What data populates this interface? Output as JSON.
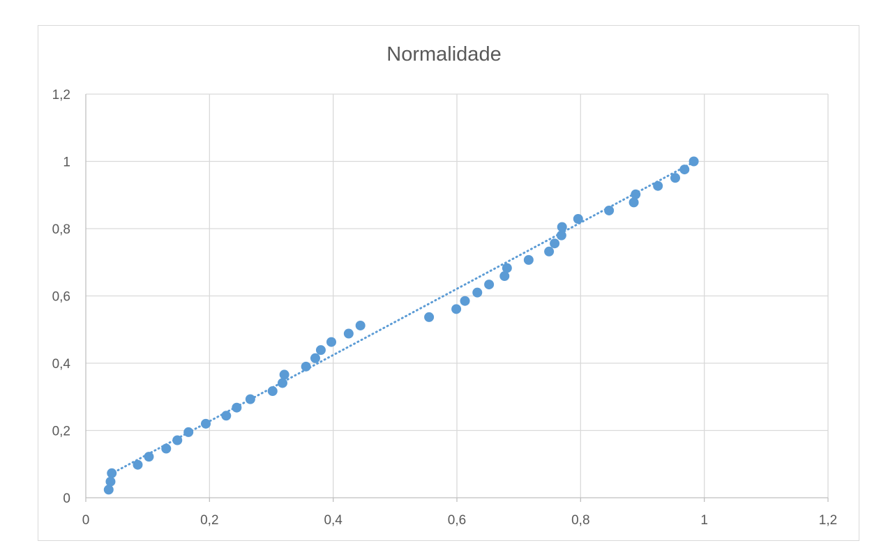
{
  "chart_data": {
    "type": "scatter",
    "title": "Normalidade",
    "xlabel": "",
    "ylabel": "",
    "xlim": [
      0,
      1.2
    ],
    "ylim": [
      0,
      1.2
    ],
    "x_ticks": [
      "0",
      "0,2",
      "0,4",
      "0,6",
      "0,8",
      "1",
      "1,2"
    ],
    "y_ticks": [
      "0",
      "0,2",
      "0,4",
      "0,6",
      "0,8",
      "1",
      "1,2"
    ],
    "grid": true,
    "legend": "none",
    "trendline": {
      "style": "dotted",
      "type": "linear",
      "from": [
        0.04,
        0.07
      ],
      "to": [
        0.985,
        1.0
      ]
    },
    "color": "#5b9bd5",
    "points": [
      [
        0.037,
        0.024
      ],
      [
        0.04,
        0.048
      ],
      [
        0.042,
        0.073
      ],
      [
        0.084,
        0.098
      ],
      [
        0.102,
        0.122
      ],
      [
        0.13,
        0.146
      ],
      [
        0.148,
        0.171
      ],
      [
        0.166,
        0.195
      ],
      [
        0.194,
        0.22
      ],
      [
        0.227,
        0.244
      ],
      [
        0.244,
        0.268
      ],
      [
        0.266,
        0.293
      ],
      [
        0.302,
        0.317
      ],
      [
        0.318,
        0.341
      ],
      [
        0.321,
        0.366
      ],
      [
        0.356,
        0.39
      ],
      [
        0.371,
        0.415
      ],
      [
        0.38,
        0.439
      ],
      [
        0.397,
        0.463
      ],
      [
        0.425,
        0.488
      ],
      [
        0.444,
        0.512
      ],
      [
        0.555,
        0.537
      ],
      [
        0.599,
        0.561
      ],
      [
        0.613,
        0.585
      ],
      [
        0.633,
        0.61
      ],
      [
        0.652,
        0.634
      ],
      [
        0.677,
        0.659
      ],
      [
        0.681,
        0.683
      ],
      [
        0.716,
        0.707
      ],
      [
        0.749,
        0.732
      ],
      [
        0.758,
        0.756
      ],
      [
        0.769,
        0.78
      ],
      [
        0.77,
        0.805
      ],
      [
        0.796,
        0.829
      ],
      [
        0.846,
        0.854
      ],
      [
        0.886,
        0.878
      ],
      [
        0.889,
        0.902
      ],
      [
        0.925,
        0.927
      ],
      [
        0.953,
        0.951
      ],
      [
        0.968,
        0.976
      ],
      [
        0.983,
        1.0
      ]
    ]
  }
}
